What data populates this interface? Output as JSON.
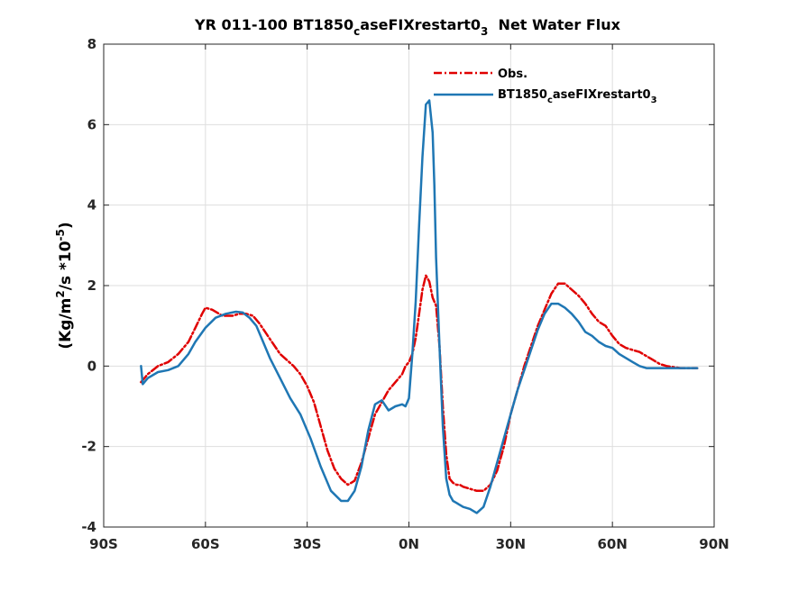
{
  "chart_data": {
    "type": "line",
    "title": {
      "main": "YR 011-100 BT1850",
      "sub": "c",
      "rest": "aseFIXrestart0",
      "sub2": "3",
      "tail": "  Net Water Flux"
    },
    "ylabel": {
      "pre": "(Kg/m",
      "sup1": "2",
      "mid": "/s *10",
      "sup2": "-5",
      "post": ")"
    },
    "xlabel": "",
    "xlim": [
      -90,
      90
    ],
    "ylim": [
      -4,
      8
    ],
    "grid": true,
    "legend_position": "top-right",
    "x_ticks": [
      {
        "value": -90,
        "label": "90S"
      },
      {
        "value": -60,
        "label": "60S"
      },
      {
        "value": -30,
        "label": "30S"
      },
      {
        "value": 0,
        "label": "0N"
      },
      {
        "value": 30,
        "label": "30N"
      },
      {
        "value": 60,
        "label": "60N"
      },
      {
        "value": 90,
        "label": "90N"
      }
    ],
    "y_ticks": [
      {
        "value": -4,
        "label": "-4"
      },
      {
        "value": -2,
        "label": "-2"
      },
      {
        "value": 0,
        "label": "0"
      },
      {
        "value": 2,
        "label": "2"
      },
      {
        "value": 4,
        "label": "4"
      },
      {
        "value": 6,
        "label": "6"
      },
      {
        "value": 8,
        "label": "8"
      }
    ],
    "series": [
      {
        "name": "Obs.",
        "color": "#e00000",
        "style": "dashdot",
        "x": [
          -79,
          -77,
          -74,
          -71,
          -68,
          -65,
          -63,
          -61,
          -60,
          -58,
          -55,
          -52,
          -50,
          -48,
          -46,
          -44,
          -42,
          -40,
          -38,
          -36,
          -34,
          -32,
          -30,
          -28,
          -26,
          -24,
          -22,
          -20,
          -18,
          -16,
          -14,
          -12,
          -10,
          -8,
          -6,
          -4,
          -2,
          -1,
          0,
          1,
          2,
          3,
          4,
          5,
          6,
          7,
          8,
          9,
          10,
          11,
          12,
          13,
          14,
          15,
          16,
          18,
          20,
          22,
          24,
          26,
          28,
          30,
          32,
          34,
          36,
          38,
          40,
          42,
          44,
          46,
          48,
          50,
          52,
          54,
          56,
          58,
          60,
          62,
          64,
          66,
          68,
          70,
          72,
          74,
          76,
          80,
          85
        ],
        "y": [
          -0.4,
          -0.2,
          0,
          0.1,
          0.3,
          0.6,
          0.95,
          1.3,
          1.45,
          1.4,
          1.25,
          1.25,
          1.3,
          1.3,
          1.25,
          1.05,
          0.8,
          0.55,
          0.3,
          0.15,
          0,
          -0.2,
          -0.5,
          -0.9,
          -1.5,
          -2.1,
          -2.55,
          -2.8,
          -2.95,
          -2.85,
          -2.4,
          -1.8,
          -1.2,
          -0.9,
          -0.6,
          -0.4,
          -0.2,
          0,
          0.1,
          0.3,
          0.7,
          1.3,
          1.9,
          2.25,
          2.1,
          1.7,
          1.5,
          0.5,
          -1.0,
          -2.2,
          -2.8,
          -2.9,
          -2.95,
          -2.95,
          -3.0,
          -3.05,
          -3.1,
          -3.1,
          -2.95,
          -2.6,
          -2.0,
          -1.2,
          -0.6,
          0,
          0.5,
          1.0,
          1.4,
          1.8,
          2.05,
          2.05,
          1.9,
          1.75,
          1.55,
          1.3,
          1.1,
          1.0,
          0.75,
          0.55,
          0.45,
          0.4,
          0.35,
          0.25,
          0.15,
          0.05,
          0,
          -0.05,
          -0.05
        ]
      },
      {
        "name": "BT1850_caseFIXrestart0_3",
        "legend_label": {
          "pre": "BT1850",
          "sub": "c",
          "mid": "aseFIXrestart0",
          "sub2": "3"
        },
        "color": "#1f77b4",
        "style": "solid",
        "x": [
          -79,
          -78.5,
          -77,
          -74,
          -71,
          -68,
          -65,
          -63,
          -60,
          -57,
          -54,
          -51,
          -49,
          -47,
          -45,
          -43,
          -41,
          -38,
          -35,
          -32,
          -29,
          -26,
          -23,
          -20,
          -18,
          -16,
          -14,
          -12,
          -10,
          -8,
          -6,
          -4,
          -2,
          -1,
          0,
          1,
          2,
          3,
          4,
          5,
          6,
          7,
          7.5,
          8,
          9,
          10,
          11,
          12,
          13,
          14,
          15,
          16,
          18,
          20,
          22,
          24,
          26,
          28,
          30,
          32,
          34,
          36,
          38,
          40,
          42,
          44,
          46,
          48,
          50,
          52,
          54,
          56,
          58,
          60,
          62,
          64,
          66,
          68,
          70,
          75,
          80,
          85
        ],
        "y": [
          0,
          -0.45,
          -0.3,
          -0.15,
          -0.1,
          0,
          0.3,
          0.6,
          0.95,
          1.2,
          1.3,
          1.35,
          1.33,
          1.2,
          1.0,
          0.6,
          0.2,
          -0.3,
          -0.8,
          -1.2,
          -1.8,
          -2.5,
          -3.1,
          -3.35,
          -3.35,
          -3.1,
          -2.5,
          -1.6,
          -0.95,
          -0.85,
          -1.1,
          -1.0,
          -0.95,
          -1.0,
          -0.8,
          0.3,
          1.6,
          3.5,
          5.2,
          6.5,
          6.6,
          5.8,
          4.5,
          2.7,
          0.5,
          -1.5,
          -2.8,
          -3.2,
          -3.35,
          -3.4,
          -3.45,
          -3.5,
          -3.55,
          -3.65,
          -3.5,
          -3.0,
          -2.4,
          -1.8,
          -1.2,
          -0.6,
          -0.1,
          0.4,
          0.9,
          1.3,
          1.55,
          1.55,
          1.45,
          1.3,
          1.1,
          0.85,
          0.75,
          0.6,
          0.5,
          0.45,
          0.3,
          0.2,
          0.1,
          0,
          -0.05,
          -0.05,
          -0.05,
          -0.05
        ]
      }
    ]
  }
}
